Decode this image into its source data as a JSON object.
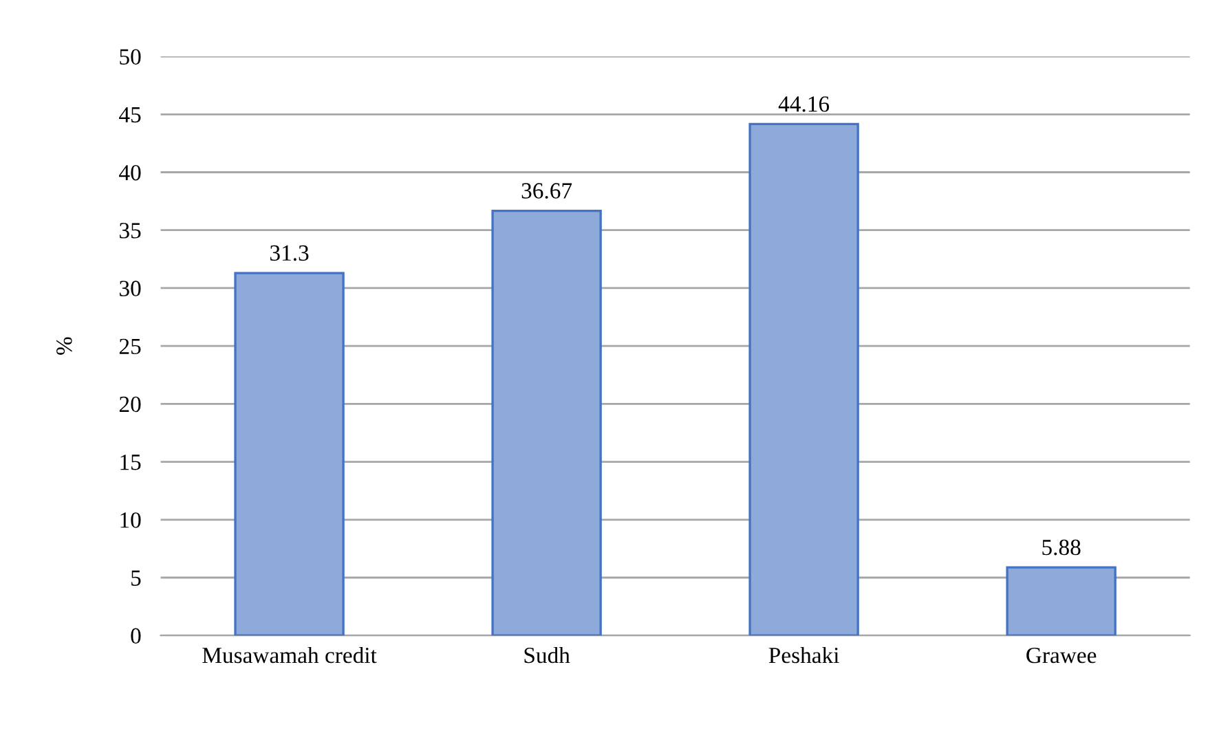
{
  "chart_data": {
    "type": "bar",
    "ylabel": "%",
    "categories": [
      "Musawamah credit",
      "Sudh",
      "Peshaki",
      "Grawee"
    ],
    "values": [
      31.3,
      36.67,
      44.16,
      5.88
    ],
    "color": "#8eaadb",
    "ylim": [
      0,
      50
    ],
    "yticks": [
      0,
      5,
      10,
      15,
      20,
      25,
      30,
      35,
      40,
      45,
      50
    ],
    "grid": "y",
    "data_labels": true
  }
}
